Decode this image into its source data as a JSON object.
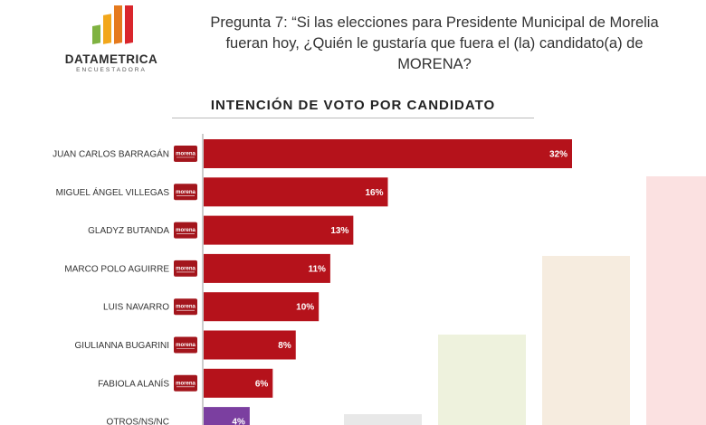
{
  "brand": {
    "name": "DATAMETRICA",
    "tagline": "ENCUESTADORA"
  },
  "question": "Pregunta 7: “Si las elecciones para Presidente Municipal de Morelia fueran hoy, ¿Quién le gustaría que fuera el (la) candidato(a) de MORENA?",
  "party_badge": "morena",
  "chart_data": {
    "type": "bar",
    "orientation": "horizontal",
    "title": "INTENCIÓN DE VOTO POR CANDIDATO",
    "categories": [
      "JUAN CARLOS BARRAGÁN",
      "MIGUEL ÁNGEL VILLEGAS",
      "GLADYZ BUTANDA",
      "MARCO POLO AGUIRRE",
      "LUIS NAVARRO",
      "GIULIANNA BUGARINI",
      "FABIOLA ALANÍS",
      "OTROS/NS/NC"
    ],
    "values": [
      32,
      16,
      13,
      11,
      10,
      8,
      6,
      4
    ],
    "value_labels": [
      "32%",
      "16%",
      "13%",
      "11%",
      "10%",
      "8%",
      "6%",
      "4%"
    ],
    "xlim": [
      0,
      32
    ],
    "bar_color": "#b5121b",
    "other_color": "#7b3fa0",
    "grid": false
  }
}
